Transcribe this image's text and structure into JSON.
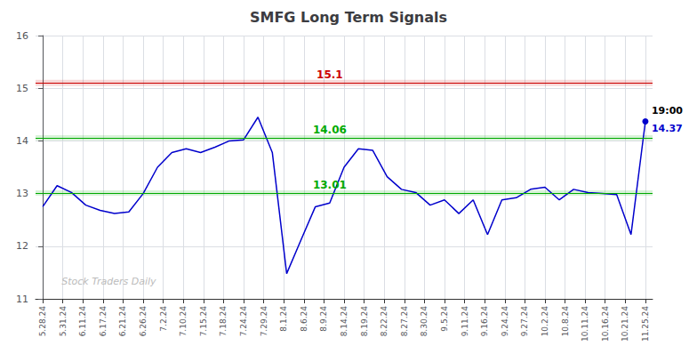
{
  "chart_data": {
    "type": "line",
    "title": "SMFG Long Term Signals",
    "x": [
      0,
      1,
      2,
      3,
      4,
      5,
      6,
      7,
      8,
      9,
      10,
      11,
      12,
      13,
      14,
      15,
      16,
      17,
      18,
      19,
      20,
      21,
      22,
      23,
      24,
      25,
      26,
      27,
      28,
      29,
      30,
      31,
      32,
      33,
      34,
      35,
      36,
      37,
      38,
      39,
      40,
      41,
      42
    ],
    "values": [
      12.75,
      13.15,
      13.02,
      12.78,
      12.68,
      12.62,
      12.65,
      13.0,
      13.5,
      13.78,
      13.85,
      13.78,
      13.88,
      14.0,
      14.02,
      14.45,
      13.78,
      11.48,
      12.12,
      12.75,
      12.82,
      13.5,
      13.85,
      13.82,
      13.32,
      13.08,
      13.02,
      12.78,
      12.88,
      12.62,
      12.88,
      12.22,
      12.88,
      12.92,
      13.08,
      13.12,
      12.88,
      13.08,
      13.02,
      13.0,
      12.98,
      12.22,
      14.37
    ],
    "color": "#0000cc",
    "xlim": [
      -0.5,
      42.5
    ],
    "xticks": [
      {
        "value": 0,
        "label": "5.28.24"
      },
      {
        "value": 1.4,
        "label": "5.31.24"
      },
      {
        "value": 2.8,
        "label": "6.11.24"
      },
      {
        "value": 4.2,
        "label": "6.17.24"
      },
      {
        "value": 5.6,
        "label": "6.21.24"
      },
      {
        "value": 7,
        "label": "6.26.24"
      },
      {
        "value": 8.4,
        "label": "7.2.24"
      },
      {
        "value": 9.8,
        "label": "7.10.24"
      },
      {
        "value": 11.2,
        "label": "7.15.24"
      },
      {
        "value": 12.6,
        "label": "7.18.24"
      },
      {
        "value": 14,
        "label": "7.24.24"
      },
      {
        "value": 15.4,
        "label": "7.29.24"
      },
      {
        "value": 16.8,
        "label": "8.1.24"
      },
      {
        "value": 18.2,
        "label": "8.6.24"
      },
      {
        "value": 19.6,
        "label": "8.9.24"
      },
      {
        "value": 21,
        "label": "8.14.24"
      },
      {
        "value": 22.4,
        "label": "8.19.24"
      },
      {
        "value": 23.8,
        "label": "8.22.24"
      },
      {
        "value": 25.2,
        "label": "8.27.24"
      },
      {
        "value": 26.6,
        "label": "8.30.24"
      },
      {
        "value": 28,
        "label": "9.5.24"
      },
      {
        "value": 29.4,
        "label": "9.11.24"
      },
      {
        "value": 30.8,
        "label": "9.16.24"
      },
      {
        "value": 32.2,
        "label": "9.24.24"
      },
      {
        "value": 33.6,
        "label": "9.27.24"
      },
      {
        "value": 35,
        "label": "10.2.24"
      },
      {
        "value": 36.4,
        "label": "10.8.24"
      },
      {
        "value": 37.8,
        "label": "10.11.24"
      },
      {
        "value": 39.2,
        "label": "10.16.24"
      },
      {
        "value": 40.6,
        "label": "10.21.24"
      },
      {
        "value": 42,
        "label": "11.25.24"
      }
    ],
    "ylim": [
      11,
      16
    ],
    "yticks": [
      11,
      12,
      13,
      14,
      15,
      16
    ],
    "grid": true,
    "reference_lines": [
      {
        "value": 15.1,
        "color": "#cc0000",
        "band": [
          15.04,
          15.16
        ]
      },
      {
        "value": 14.06,
        "color": "#00aa00",
        "band": [
          14.01,
          14.11
        ]
      },
      {
        "value": 13.01,
        "color": "#00aa00",
        "band": [
          12.96,
          13.06
        ]
      }
    ],
    "annotations": [
      {
        "text": "15.1",
        "x": 20,
        "y": 15.1,
        "color": "#cc0000"
      },
      {
        "text": "14.06",
        "x": 20,
        "y": 14.06,
        "color": "#00aa00"
      },
      {
        "text": "13.01",
        "x": 20,
        "y": 13.01,
        "color": "#00aa00"
      }
    ],
    "last_point_labels": [
      "19:00",
      "14.37"
    ],
    "watermark": {
      "text": "Stock Traders Daily",
      "x": 1,
      "y": 11.15,
      "color": "#bbbbbb"
    }
  }
}
